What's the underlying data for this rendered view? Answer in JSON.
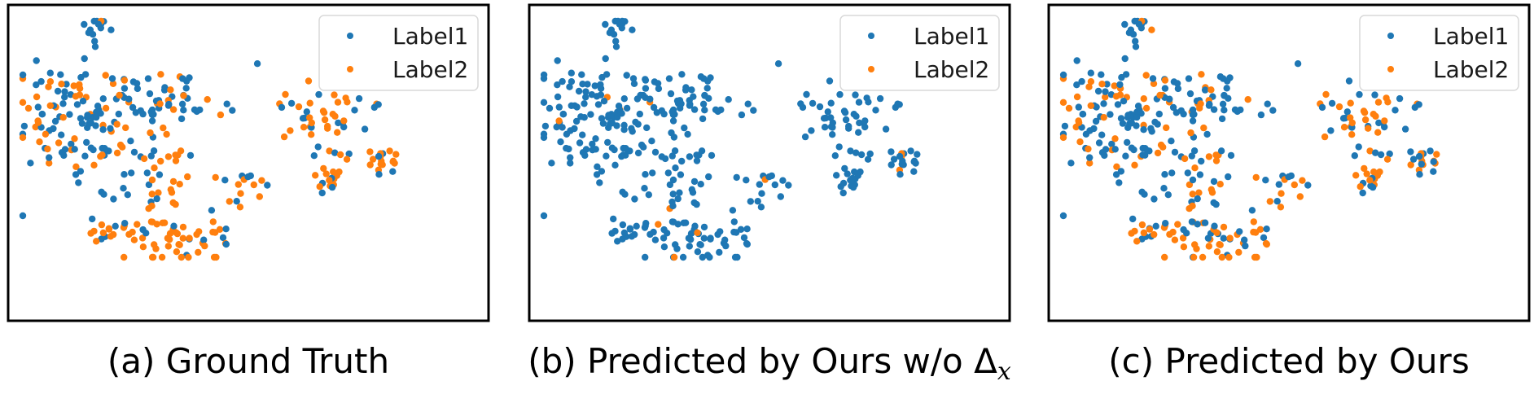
{
  "colors": {
    "label1": "#1f77b4",
    "label2": "#ff7f0e",
    "frame": "#000000"
  },
  "legend": {
    "label1": "Label1",
    "label2": "Label2",
    "placement": "top-right"
  },
  "chart_data": [
    {
      "type": "scatter",
      "caption": "(a) Ground Truth",
      "caption_math": "",
      "series": [
        {
          "name": "Label1",
          "points": []
        },
        {
          "name": "Label2",
          "points": []
        }
      ],
      "note": "t-SNE style embedding; axes hidden"
    },
    {
      "type": "scatter",
      "caption": "(b) Predicted by Ours w/o ",
      "caption_math": "Δ",
      "caption_sub": "x",
      "series": [
        {
          "name": "Label1",
          "points": []
        },
        {
          "name": "Label2",
          "points": []
        }
      ]
    },
    {
      "type": "scatter",
      "caption": "(c) Predicted by Ours",
      "caption_math": "",
      "series": [
        {
          "name": "Label1",
          "points": []
        },
        {
          "name": "Label2",
          "points": []
        }
      ]
    }
  ]
}
